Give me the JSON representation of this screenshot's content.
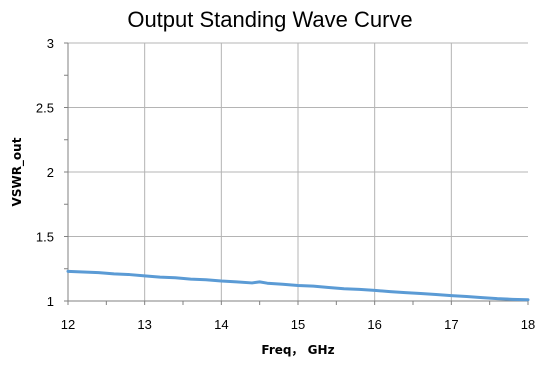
{
  "chart_data": {
    "type": "line",
    "title": "Output Standing Wave Curve",
    "xlabel": "Freq， GHz",
    "ylabel": "VSWR_out",
    "xlim": [
      12,
      18
    ],
    "ylim": [
      1,
      3
    ],
    "x_ticks": [
      "12",
      "13",
      "14",
      "15",
      "16",
      "17",
      "18"
    ],
    "y_ticks": [
      "1",
      "1.5",
      "2",
      "2.5",
      "3"
    ],
    "grid": true,
    "legend": "none",
    "series": [
      {
        "color": "#5b9bd5",
        "x": [
          12.0,
          12.2,
          12.4,
          12.5,
          12.6,
          12.8,
          13.0,
          13.2,
          13.4,
          13.6,
          13.8,
          14.0,
          14.2,
          14.4,
          14.5,
          14.6,
          14.8,
          15.0,
          15.2,
          15.4,
          15.6,
          15.8,
          16.0,
          16.2,
          16.4,
          16.6,
          16.8,
          17.0,
          17.2,
          17.4,
          17.6,
          17.8,
          18.0
        ],
        "y": [
          1.23,
          1.225,
          1.22,
          1.215,
          1.21,
          1.205,
          1.195,
          1.185,
          1.18,
          1.17,
          1.165,
          1.155,
          1.148,
          1.14,
          1.148,
          1.138,
          1.13,
          1.12,
          1.115,
          1.105,
          1.095,
          1.09,
          1.082,
          1.073,
          1.065,
          1.058,
          1.05,
          1.042,
          1.035,
          1.026,
          1.018,
          1.013,
          1.01
        ]
      }
    ]
  }
}
